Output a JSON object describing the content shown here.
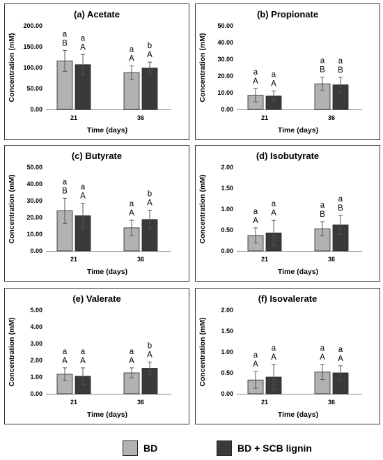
{
  "colors": {
    "bd": "#b2b2b2",
    "lignin": "#3a3a3a"
  },
  "legend": {
    "bd": "BD",
    "lignin": "BD + SCB lignin"
  },
  "chart_data": [
    {
      "type": "bar",
      "title": "(a) Acetate",
      "xlabel": "Time (days)",
      "ylabel": "Concentration (mM)",
      "categories": [
        "21",
        "36"
      ],
      "ylim": [
        0,
        200
      ],
      "yticks": [
        "0.00",
        "50.00",
        "100.00",
        "150.00",
        "200.00"
      ],
      "series": [
        {
          "name": "BD",
          "values": [
            116,
            88
          ],
          "errors": [
            25,
            16
          ],
          "upper_letters": [
            "a",
            "a"
          ],
          "lower_letters": [
            "B",
            "A"
          ]
        },
        {
          "name": "BD + SCB lignin",
          "values": [
            107,
            99
          ],
          "errors": [
            24,
            14
          ],
          "upper_letters": [
            "a",
            "b"
          ],
          "lower_letters": [
            "A",
            "A"
          ]
        }
      ]
    },
    {
      "type": "bar",
      "title": "(b) Propionate",
      "xlabel": "Time (days)",
      "ylabel": "Concentration (mM)",
      "categories": [
        "21",
        "36"
      ],
      "ylim": [
        0,
        50
      ],
      "yticks": [
        "0.00",
        "10.00",
        "20.00",
        "30.00",
        "40.00",
        "50.00"
      ],
      "series": [
        {
          "name": "BD",
          "values": [
            8.5,
            15.3
          ],
          "errors": [
            4,
            4
          ],
          "upper_letters": [
            "a",
            "a"
          ],
          "lower_letters": [
            "A",
            "B"
          ]
        },
        {
          "name": "BD + SCB lignin",
          "values": [
            8,
            14.7
          ],
          "errors": [
            3,
            4.5
          ],
          "upper_letters": [
            "a",
            "a"
          ],
          "lower_letters": [
            "A",
            "B"
          ]
        }
      ]
    },
    {
      "type": "bar",
      "title": "(c) Butyrate",
      "xlabel": "Time (days)",
      "ylabel": "Concentration (mM)",
      "categories": [
        "21",
        "36"
      ],
      "ylim": [
        0,
        50
      ],
      "yticks": [
        "0.00",
        "10.00",
        "20.00",
        "30.00",
        "40.00",
        "50.00"
      ],
      "series": [
        {
          "name": "BD",
          "values": [
            24,
            13.8
          ],
          "errors": [
            7.5,
            4.5
          ],
          "upper_letters": [
            "a",
            "a"
          ],
          "lower_letters": [
            "B",
            "A"
          ]
        },
        {
          "name": "BD + SCB lignin",
          "values": [
            21,
            18.8
          ],
          "errors": [
            7.5,
            5.5
          ],
          "upper_letters": [
            "a",
            "b"
          ],
          "lower_letters": [
            "A",
            "A"
          ]
        }
      ]
    },
    {
      "type": "bar",
      "title": "(d) Isobutyrate",
      "xlabel": "Time (days)",
      "ylabel": "Concentration (mM)",
      "categories": [
        "21",
        "36"
      ],
      "ylim": [
        0,
        2
      ],
      "yticks": [
        "0.00",
        "0.50",
        "1.00",
        "1.50",
        "2.00"
      ],
      "series": [
        {
          "name": "BD",
          "values": [
            0.37,
            0.53
          ],
          "errors": [
            0.18,
            0.17
          ],
          "upper_letters": [
            "a",
            "a"
          ],
          "lower_letters": [
            "A",
            "B"
          ]
        },
        {
          "name": "BD + SCB lignin",
          "values": [
            0.43,
            0.62
          ],
          "errors": [
            0.3,
            0.23
          ],
          "upper_letters": [
            "a",
            "a"
          ],
          "lower_letters": [
            "A",
            "B"
          ]
        }
      ]
    },
    {
      "type": "bar",
      "title": "(e) Valerate",
      "xlabel": "Time (days)",
      "ylabel": "Concentration (mM)",
      "categories": [
        "21",
        "36"
      ],
      "ylim": [
        0,
        5
      ],
      "yticks": [
        "0.00",
        "1.00",
        "2.00",
        "3.00",
        "4.00",
        "5.00"
      ],
      "series": [
        {
          "name": "BD",
          "values": [
            1.17,
            1.25
          ],
          "errors": [
            0.38,
            0.3
          ],
          "upper_letters": [
            "a",
            "a"
          ],
          "lower_letters": [
            "A",
            "A"
          ]
        },
        {
          "name": "BD + SCB lignin",
          "values": [
            1.05,
            1.52
          ],
          "errors": [
            0.5,
            0.38
          ],
          "upper_letters": [
            "a",
            "b"
          ],
          "lower_letters": [
            "A",
            "A"
          ]
        }
      ]
    },
    {
      "type": "bar",
      "title": "(f) Isovalerate",
      "xlabel": "Time (days)",
      "ylabel": "Concentration (mM)",
      "categories": [
        "21",
        "36"
      ],
      "ylim": [
        0,
        2
      ],
      "yticks": [
        "0.00",
        "0.50",
        "1.00",
        "1.50",
        "2.00"
      ],
      "series": [
        {
          "name": "BD",
          "values": [
            0.33,
            0.52
          ],
          "errors": [
            0.2,
            0.18
          ],
          "upper_letters": [
            "a",
            "a"
          ],
          "lower_letters": [
            "A",
            "A"
          ]
        },
        {
          "name": "BD + SCB lignin",
          "values": [
            0.4,
            0.5
          ],
          "errors": [
            0.3,
            0.17
          ],
          "upper_letters": [
            "a",
            "a"
          ],
          "lower_letters": [
            "A",
            "A"
          ]
        }
      ]
    }
  ]
}
